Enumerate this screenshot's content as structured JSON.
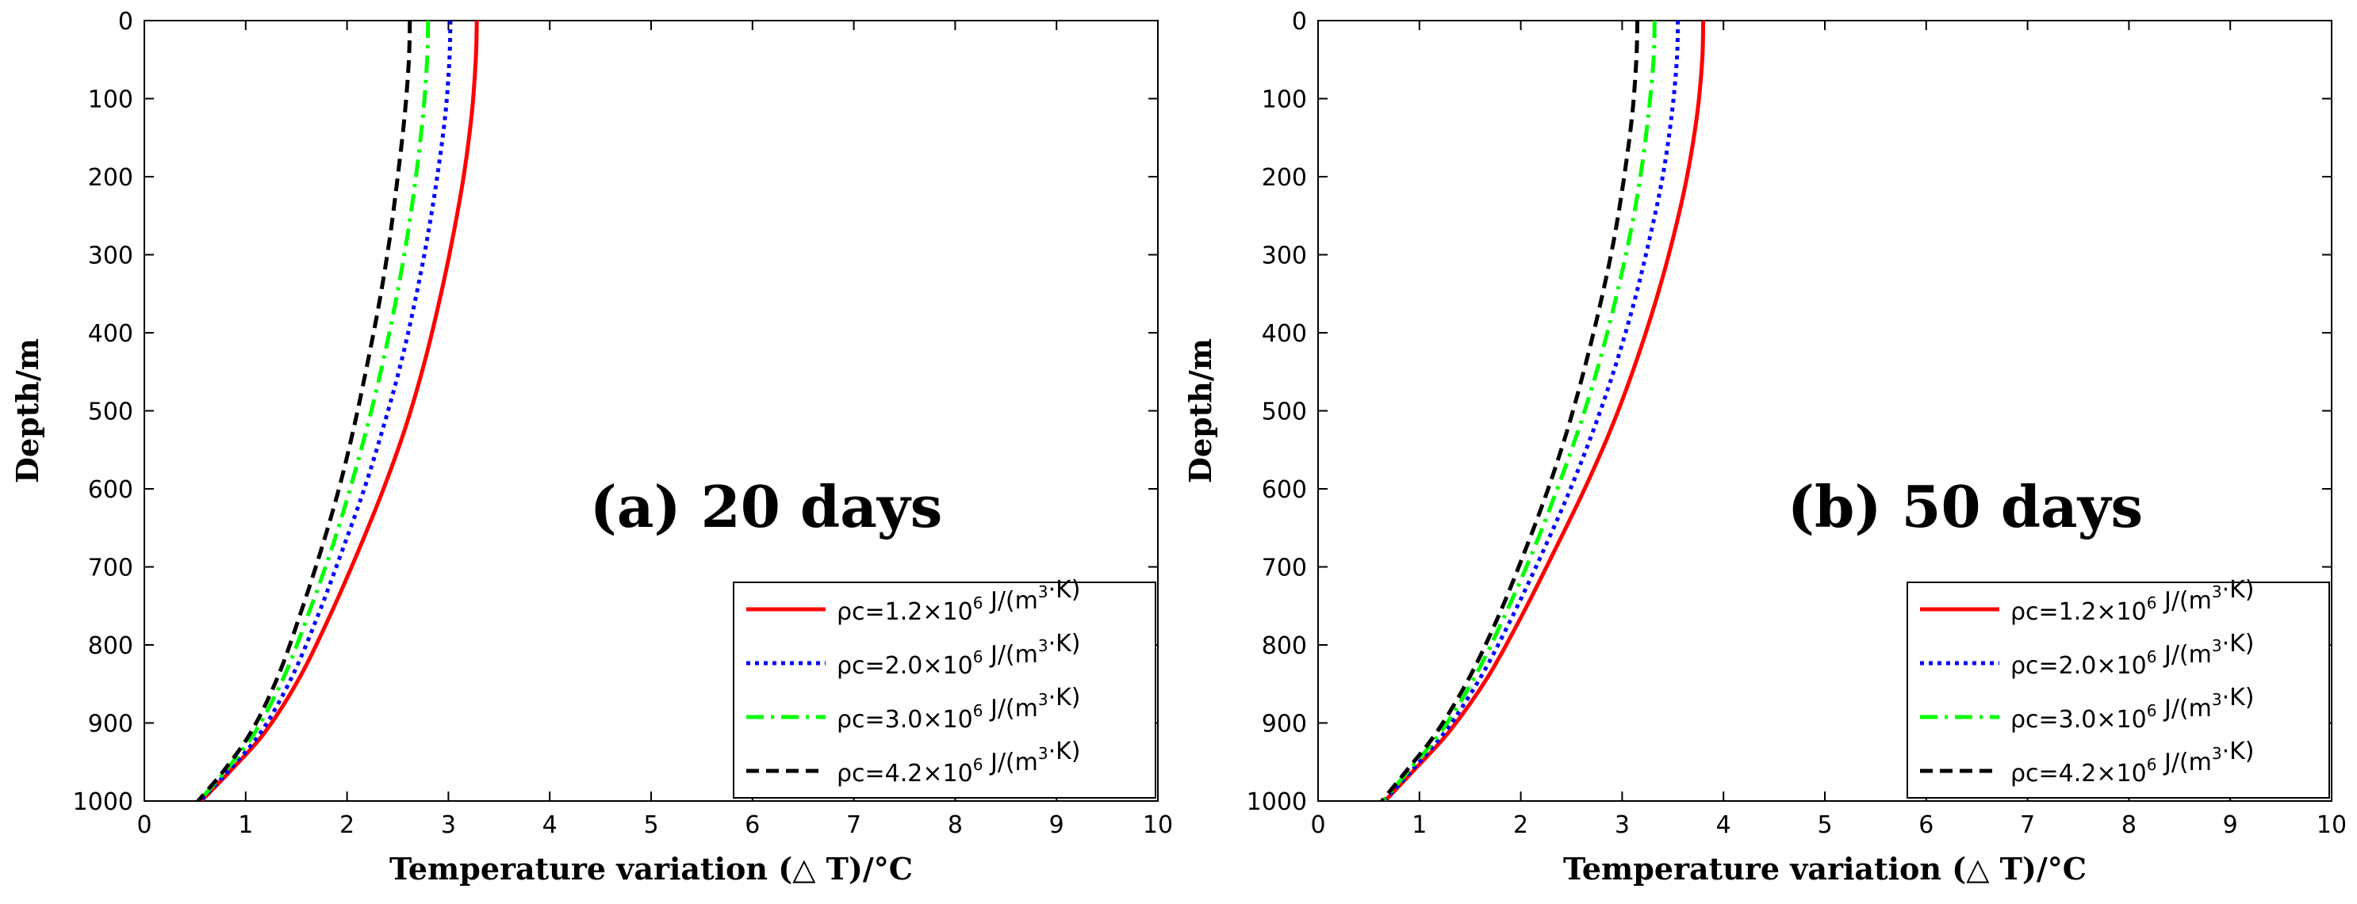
{
  "chart_data": [
    {
      "type": "line",
      "panel": "a",
      "annotation": "(a) 20 days",
      "xlabel": "Temperature variation (△ T)/°C",
      "ylabel": "Depth/m",
      "xlim": [
        0,
        10
      ],
      "ylim": [
        0,
        1000
      ],
      "y_reversed": true,
      "xticks": [
        0,
        1,
        2,
        3,
        4,
        5,
        6,
        7,
        8,
        9,
        10
      ],
      "yticks": [
        0,
        100,
        200,
        300,
        400,
        500,
        600,
        700,
        800,
        900,
        1000
      ],
      "legend_position": "bottom-right",
      "grid": false,
      "series": [
        {
          "name": "ρc=1.2×10^6 J/(m^3·K)",
          "legend": {
            "prefix": "ρc=1.2×10",
            "exp": "6",
            "mid": " J/(m",
            "unit_exp": "3",
            "suffix": "·K)"
          },
          "color": "#ff0000",
          "dash": "solid",
          "x": [
            3.28,
            3.27,
            3.23,
            3.15,
            3.04,
            2.91,
            2.76,
            2.58,
            2.36,
            2.11,
            1.84,
            1.54,
            1.2,
            0.86,
            0.56
          ],
          "y": [
            0,
            50,
            120,
            200,
            280,
            360,
            440,
            520,
            600,
            680,
            760,
            840,
            910,
            960,
            1000
          ]
        },
        {
          "name": "ρc=2.0×10^6 J/(m^3·K)",
          "legend": {
            "prefix": "ρc=2.0×10",
            "exp": "6",
            "mid": " J/(m",
            "unit_exp": "3",
            "suffix": "·K)"
          },
          "color": "#0000ff",
          "dash": "dotted",
          "x": [
            3.02,
            3.01,
            2.97,
            2.89,
            2.79,
            2.67,
            2.53,
            2.36,
            2.17,
            1.95,
            1.72,
            1.46,
            1.16,
            0.84,
            0.55
          ],
          "y": [
            0,
            50,
            120,
            200,
            280,
            360,
            440,
            520,
            600,
            680,
            760,
            840,
            910,
            960,
            1000
          ]
        },
        {
          "name": "ρc=3.0×10^6 J/(m^3·K)",
          "legend": {
            "prefix": "ρc=3.0×10",
            "exp": "6",
            "mid": " J/(m",
            "unit_exp": "3",
            "suffix": "·K)"
          },
          "color": "#00ff00",
          "dash": "dashdot",
          "x": [
            2.8,
            2.79,
            2.75,
            2.68,
            2.59,
            2.48,
            2.35,
            2.2,
            2.03,
            1.84,
            1.62,
            1.38,
            1.1,
            0.81,
            0.54
          ],
          "y": [
            0,
            50,
            120,
            200,
            280,
            360,
            440,
            520,
            600,
            680,
            760,
            840,
            910,
            960,
            1000
          ]
        },
        {
          "name": "ρc=4.2×10^6 J/(m^3·K)",
          "legend": {
            "prefix": "ρc=4.2×10",
            "exp": "6",
            "mid": " J/(m",
            "unit_exp": "3",
            "suffix": "·K)"
          },
          "color": "#000000",
          "dash": "dashed",
          "x": [
            2.62,
            2.61,
            2.57,
            2.5,
            2.42,
            2.32,
            2.2,
            2.07,
            1.92,
            1.74,
            1.54,
            1.32,
            1.06,
            0.79,
            0.53
          ],
          "y": [
            0,
            50,
            120,
            200,
            280,
            360,
            440,
            520,
            600,
            680,
            760,
            840,
            910,
            960,
            1000
          ]
        }
      ]
    },
    {
      "type": "line",
      "panel": "b",
      "annotation": "(b) 50 days",
      "xlabel": "Temperature variation (△ T)/°C",
      "ylabel": "Depth/m",
      "xlim": [
        0,
        10
      ],
      "ylim": [
        0,
        1000
      ],
      "y_reversed": true,
      "xticks": [
        0,
        1,
        2,
        3,
        4,
        5,
        6,
        7,
        8,
        9,
        10
      ],
      "yticks": [
        0,
        100,
        200,
        300,
        400,
        500,
        600,
        700,
        800,
        900,
        1000
      ],
      "legend_position": "bottom-right",
      "grid": false,
      "series": [
        {
          "name": "ρc=1.2×10^6 J/(m^3·K)",
          "legend": {
            "prefix": "ρc=1.2×10",
            "exp": "6",
            "mid": " J/(m",
            "unit_exp": "3",
            "suffix": "·K)"
          },
          "color": "#ff0000",
          "dash": "solid",
          "x": [
            3.8,
            3.79,
            3.74,
            3.64,
            3.5,
            3.33,
            3.13,
            2.9,
            2.63,
            2.33,
            2.02,
            1.68,
            1.3,
            0.95,
            0.66
          ],
          "y": [
            0,
            50,
            120,
            200,
            280,
            360,
            440,
            520,
            600,
            680,
            760,
            840,
            910,
            960,
            1000
          ]
        },
        {
          "name": "ρc=2.0×10^6 J/(m^3·K)",
          "legend": {
            "prefix": "ρc=2.0×10",
            "exp": "6",
            "mid": " J/(m",
            "unit_exp": "3",
            "suffix": "·K)"
          },
          "color": "#0000ff",
          "dash": "dotted",
          "x": [
            3.55,
            3.54,
            3.49,
            3.4,
            3.27,
            3.12,
            2.94,
            2.73,
            2.49,
            2.22,
            1.93,
            1.61,
            1.26,
            0.93,
            0.65
          ],
          "y": [
            0,
            50,
            120,
            200,
            280,
            360,
            440,
            520,
            600,
            680,
            760,
            840,
            910,
            960,
            1000
          ]
        },
        {
          "name": "ρc=3.0×10^6 J/(m^3·K)",
          "legend": {
            "prefix": "ρc=3.0×10",
            "exp": "6",
            "mid": " J/(m",
            "unit_exp": "3",
            "suffix": "·K)"
          },
          "color": "#00ff00",
          "dash": "dashdot",
          "x": [
            3.32,
            3.31,
            3.26,
            3.18,
            3.07,
            2.93,
            2.77,
            2.58,
            2.36,
            2.12,
            1.85,
            1.55,
            1.22,
            0.9,
            0.64
          ],
          "y": [
            0,
            50,
            120,
            200,
            280,
            360,
            440,
            520,
            600,
            680,
            760,
            840,
            910,
            960,
            1000
          ]
        },
        {
          "name": "ρc=4.2×10^6 J/(m^3·K)",
          "legend": {
            "prefix": "ρc=4.2×10",
            "exp": "6",
            "mid": " J/(m",
            "unit_exp": "3",
            "suffix": "·K)"
          },
          "color": "#000000",
          "dash": "dashed",
          "x": [
            3.15,
            3.14,
            3.1,
            3.02,
            2.92,
            2.79,
            2.64,
            2.47,
            2.27,
            2.04,
            1.79,
            1.5,
            1.18,
            0.88,
            0.63
          ],
          "y": [
            0,
            50,
            120,
            200,
            280,
            360,
            440,
            520,
            600,
            680,
            760,
            840,
            910,
            960,
            1000
          ]
        }
      ]
    }
  ]
}
